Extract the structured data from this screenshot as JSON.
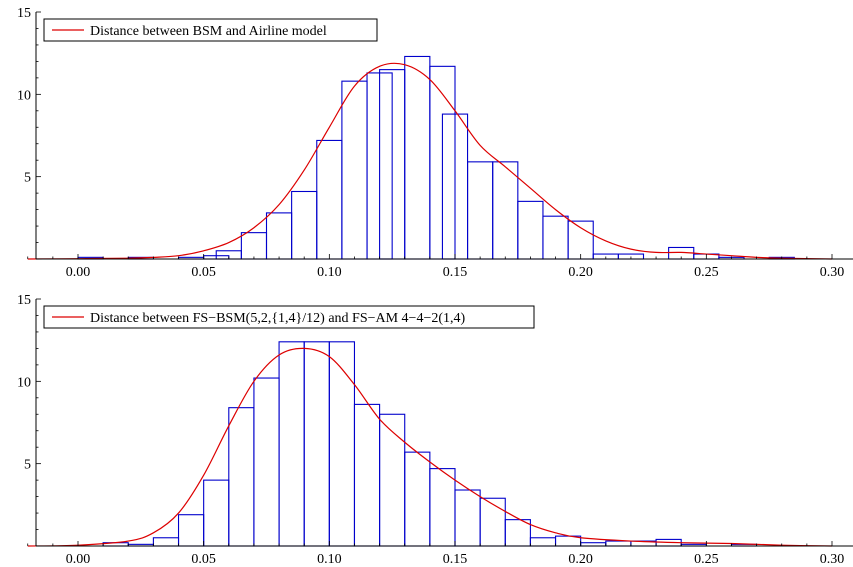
{
  "chart_data": [
    {
      "type": "bar",
      "legend": "Distance between BSM and Airline model",
      "legend_placement": "top-left",
      "grid": false,
      "xlim": [
        -0.02,
        0.3
      ],
      "ylim": [
        0,
        15
      ],
      "x_ticks": [
        "0.00",
        "0.05",
        "0.10",
        "0.15",
        "0.20",
        "0.25",
        "0.30"
      ],
      "y_ticks": [
        "5",
        "10",
        "15"
      ],
      "bin_width": 0.01,
      "series": [
        {
          "kind": "histogram",
          "color": "#0000cc",
          "bins": [
            {
              "x0": 0.0,
              "value": 0.1
            },
            {
              "x0": 0.02,
              "value": 0.1
            },
            {
              "x0": 0.04,
              "value": 0.1
            },
            {
              "x0": 0.05,
              "value": 0.2
            },
            {
              "x0": 0.055,
              "value": 0.5
            },
            {
              "x0": 0.065,
              "value": 1.6
            },
            {
              "x0": 0.075,
              "value": 2.8
            },
            {
              "x0": 0.085,
              "value": 4.1
            },
            {
              "x0": 0.095,
              "value": 7.2
            },
            {
              "x0": 0.105,
              "value": 10.8
            },
            {
              "x0": 0.115,
              "value": 11.3
            },
            {
              "x0": 0.12,
              "value": 11.5
            },
            {
              "x0": 0.13,
              "value": 12.3
            },
            {
              "x0": 0.14,
              "value": 11.7
            },
            {
              "x0": 0.145,
              "value": 8.8
            },
            {
              "x0": 0.155,
              "value": 5.9
            },
            {
              "x0": 0.165,
              "value": 5.9
            },
            {
              "x0": 0.175,
              "value": 3.5
            },
            {
              "x0": 0.185,
              "value": 2.6
            },
            {
              "x0": 0.195,
              "value": 2.3
            },
            {
              "x0": 0.205,
              "value": 0.3
            },
            {
              "x0": 0.215,
              "value": 0.3
            },
            {
              "x0": 0.235,
              "value": 0.7
            },
            {
              "x0": 0.245,
              "value": 0.3
            },
            {
              "x0": 0.255,
              "value": 0.1
            },
            {
              "x0": 0.275,
              "value": 0.1
            }
          ]
        },
        {
          "kind": "density",
          "color": "#dd0000",
          "x": [
            -0.02,
            0.0,
            0.02,
            0.03,
            0.04,
            0.05,
            0.06,
            0.07,
            0.08,
            0.09,
            0.1,
            0.11,
            0.12,
            0.13,
            0.14,
            0.15,
            0.16,
            0.17,
            0.18,
            0.19,
            0.2,
            0.21,
            0.22,
            0.23,
            0.24,
            0.25,
            0.26,
            0.27,
            0.28,
            0.3
          ],
          "y": [
            0,
            0.02,
            0.05,
            0.1,
            0.2,
            0.5,
            1.0,
            1.9,
            3.3,
            5.4,
            8.0,
            10.5,
            11.7,
            11.8,
            10.9,
            9.0,
            6.9,
            5.6,
            4.3,
            3.0,
            1.9,
            1.1,
            0.6,
            0.4,
            0.4,
            0.3,
            0.2,
            0.1,
            0.05,
            0
          ]
        }
      ]
    },
    {
      "type": "bar",
      "legend": "Distance between FS−BSM(5,2,{1,4}/12) and FS−AM 4−4−2(1,4)",
      "legend_placement": "top-left",
      "grid": false,
      "xlim": [
        -0.02,
        0.3
      ],
      "ylim": [
        0,
        15
      ],
      "x_ticks": [
        "0.00",
        "0.05",
        "0.10",
        "0.15",
        "0.20",
        "0.25",
        "0.30"
      ],
      "y_ticks": [
        "5",
        "10",
        "15"
      ],
      "bin_width": 0.01,
      "series": [
        {
          "kind": "histogram",
          "color": "#0000cc",
          "bins": [
            {
              "x0": 0.01,
              "value": 0.2
            },
            {
              "x0": 0.02,
              "value": 0.1
            },
            {
              "x0": 0.03,
              "value": 0.5
            },
            {
              "x0": 0.04,
              "value": 1.9
            },
            {
              "x0": 0.05,
              "value": 4.0
            },
            {
              "x0": 0.06,
              "value": 8.4
            },
            {
              "x0": 0.07,
              "value": 10.2
            },
            {
              "x0": 0.08,
              "value": 12.4
            },
            {
              "x0": 0.09,
              "value": 12.4
            },
            {
              "x0": 0.1,
              "value": 12.4
            },
            {
              "x0": 0.11,
              "value": 8.6
            },
            {
              "x0": 0.12,
              "value": 8.0
            },
            {
              "x0": 0.13,
              "value": 5.7
            },
            {
              "x0": 0.14,
              "value": 4.7
            },
            {
              "x0": 0.15,
              "value": 3.4
            },
            {
              "x0": 0.16,
              "value": 2.9
            },
            {
              "x0": 0.17,
              "value": 1.6
            },
            {
              "x0": 0.18,
              "value": 0.5
            },
            {
              "x0": 0.19,
              "value": 0.6
            },
            {
              "x0": 0.2,
              "value": 0.2
            },
            {
              "x0": 0.21,
              "value": 0.3
            },
            {
              "x0": 0.22,
              "value": 0.3
            },
            {
              "x0": 0.23,
              "value": 0.4
            },
            {
              "x0": 0.24,
              "value": 0.1
            },
            {
              "x0": 0.26,
              "value": 0.1
            }
          ]
        },
        {
          "kind": "density",
          "color": "#dd0000",
          "x": [
            -0.02,
            0.0,
            0.02,
            0.03,
            0.04,
            0.05,
            0.06,
            0.07,
            0.08,
            0.09,
            0.1,
            0.11,
            0.12,
            0.13,
            0.14,
            0.15,
            0.16,
            0.17,
            0.18,
            0.19,
            0.2,
            0.22,
            0.24,
            0.26,
            0.28,
            0.3
          ],
          "y": [
            0,
            0.05,
            0.3,
            0.8,
            2.0,
            4.3,
            7.3,
            10.0,
            11.6,
            12.0,
            11.5,
            9.8,
            7.7,
            6.3,
            5.1,
            4.0,
            3.0,
            2.1,
            1.3,
            0.8,
            0.5,
            0.3,
            0.2,
            0.15,
            0.05,
            0
          ]
        }
      ]
    }
  ]
}
